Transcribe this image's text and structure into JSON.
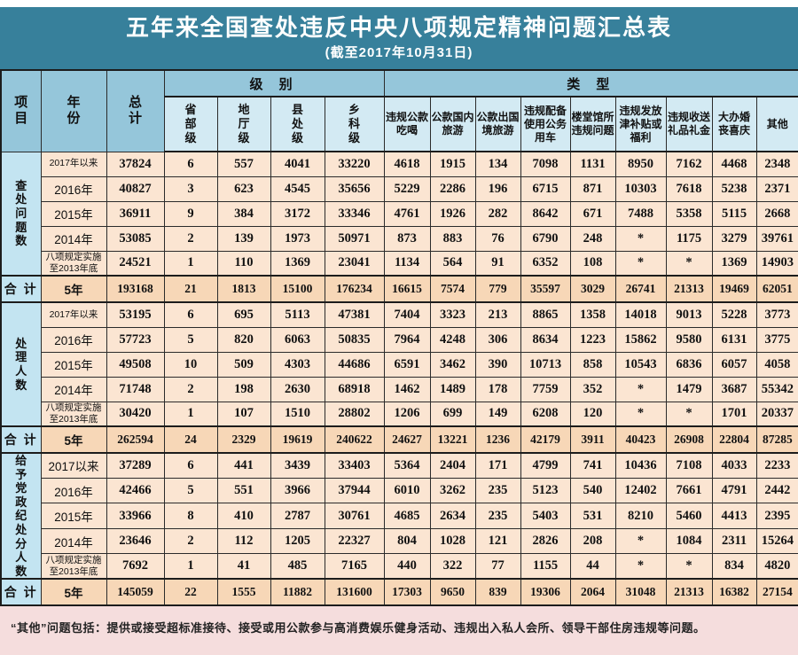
{
  "colors": {
    "title_bg": "#37809B",
    "header_bg": "#95C6DA",
    "subheader_bg": "#D3EAF3",
    "section_label_bg": "#C3E4F1",
    "row_bg": "#FBE5D2",
    "summary_row_bg": "#F7D7B7",
    "footnote_bg": "#F5DDDD"
  },
  "chart_data": {
    "type": "table",
    "title": "五年来全国查处违反中央八项规定精神问题汇总表",
    "subtitle": "(截至2017年10月31日)",
    "columns": {
      "item": "项目",
      "year": "年份",
      "total": "总计",
      "level_group": "级 别",
      "type_group": "类 型",
      "level_cols": [
        "省部级",
        "地厅级",
        "县处级",
        "乡科级"
      ],
      "type_cols": [
        "违规公款吃喝",
        "公款国内旅游",
        "公款出国境旅游",
        "违规配备使用公务用车",
        "楼堂馆所违规问题",
        "违规发放津补贴或福利",
        "违规收送礼品礼金",
        "大办婚丧喜庆",
        "其他"
      ]
    },
    "sections": [
      {
        "label": "查处问题数",
        "rows": [
          {
            "year": "2017年以来",
            "total": "37824",
            "values": [
              "6",
              "557",
              "4041",
              "33220",
              "4618",
              "1915",
              "134",
              "7098",
              "1131",
              "8950",
              "7162",
              "4468",
              "2348"
            ]
          },
          {
            "year": "2016年",
            "total": "40827",
            "values": [
              "3",
              "623",
              "4545",
              "35656",
              "5229",
              "2286",
              "196",
              "6715",
              "871",
              "10303",
              "7618",
              "5238",
              "2371"
            ]
          },
          {
            "year": "2015年",
            "total": "36911",
            "values": [
              "9",
              "384",
              "3172",
              "33346",
              "4761",
              "1926",
              "282",
              "8642",
              "671",
              "7488",
              "5358",
              "5115",
              "2668"
            ]
          },
          {
            "year": "2014年",
            "total": "53085",
            "values": [
              "2",
              "139",
              "1973",
              "50971",
              "873",
              "883",
              "76",
              "6790",
              "248",
              "*",
              "1175",
              "3279",
              "39761"
            ]
          },
          {
            "year": "八项规定实施至2013年底",
            "total": "24521",
            "values": [
              "1",
              "110",
              "1369",
              "23041",
              "1134",
              "564",
              "91",
              "6352",
              "108",
              "*",
              "*",
              "1369",
              "14903"
            ]
          }
        ],
        "summary": {
          "label": "合 计",
          "year": "5年",
          "total": "193168",
          "values": [
            "21",
            "1813",
            "15100",
            "176234",
            "16615",
            "7574",
            "779",
            "35597",
            "3029",
            "26741",
            "21313",
            "19469",
            "62051"
          ]
        }
      },
      {
        "label": "处理人数",
        "rows": [
          {
            "year": "2017年以来",
            "total": "53195",
            "values": [
              "6",
              "695",
              "5113",
              "47381",
              "7404",
              "3323",
              "213",
              "8865",
              "1358",
              "14018",
              "9013",
              "5228",
              "3773"
            ]
          },
          {
            "year": "2016年",
            "total": "57723",
            "values": [
              "5",
              "820",
              "6063",
              "50835",
              "7964",
              "4248",
              "306",
              "8634",
              "1223",
              "15862",
              "9580",
              "6131",
              "3775"
            ]
          },
          {
            "year": "2015年",
            "total": "49508",
            "values": [
              "10",
              "509",
              "4303",
              "44686",
              "6591",
              "3462",
              "390",
              "10713",
              "858",
              "10543",
              "6836",
              "6057",
              "4058"
            ]
          },
          {
            "year": "2014年",
            "total": "71748",
            "values": [
              "2",
              "198",
              "2630",
              "68918",
              "1462",
              "1489",
              "178",
              "7759",
              "352",
              "*",
              "1479",
              "3687",
              "55342"
            ]
          },
          {
            "year": "八项规定实施至2013年底",
            "total": "30420",
            "values": [
              "1",
              "107",
              "1510",
              "28802",
              "1206",
              "699",
              "149",
              "6208",
              "120",
              "*",
              "*",
              "1701",
              "20337"
            ]
          }
        ],
        "summary": {
          "label": "合 计",
          "year": "5年",
          "total": "262594",
          "values": [
            "24",
            "2329",
            "19619",
            "240622",
            "24627",
            "13221",
            "1236",
            "42179",
            "3911",
            "40423",
            "26908",
            "22804",
            "87285"
          ]
        }
      },
      {
        "label": "给予党政纪处分人数",
        "rows": [
          {
            "year": "2017以来",
            "total": "37289",
            "values": [
              "6",
              "441",
              "3439",
              "33403",
              "5364",
              "2404",
              "171",
              "4799",
              "741",
              "10436",
              "7108",
              "4033",
              "2233"
            ]
          },
          {
            "year": "2016年",
            "total": "42466",
            "values": [
              "5",
              "551",
              "3966",
              "37944",
              "6010",
              "3262",
              "235",
              "5123",
              "540",
              "12402",
              "7661",
              "4791",
              "2442"
            ]
          },
          {
            "year": "2015年",
            "total": "33966",
            "values": [
              "8",
              "410",
              "2787",
              "30761",
              "4685",
              "2634",
              "235",
              "5403",
              "531",
              "8210",
              "5460",
              "4413",
              "2395"
            ]
          },
          {
            "year": "2014年",
            "total": "23646",
            "values": [
              "2",
              "112",
              "1205",
              "22327",
              "804",
              "1028",
              "121",
              "2826",
              "208",
              "*",
              "1084",
              "2311",
              "15264"
            ]
          },
          {
            "year": "八项规定实施至2013年底",
            "total": "7692",
            "values": [
              "1",
              "41",
              "485",
              "7165",
              "440",
              "322",
              "77",
              "1155",
              "44",
              "*",
              "*",
              "834",
              "4820"
            ]
          }
        ],
        "summary": {
          "label": "合 计",
          "year": "5年",
          "total": "145059",
          "values": [
            "22",
            "1555",
            "11882",
            "131600",
            "17303",
            "9650",
            "839",
            "19306",
            "2064",
            "31048",
            "21313",
            "16382",
            "27154"
          ]
        }
      }
    ],
    "footnote": "“其他”问题包括：提供或接受超标准接待、接受或用公款参与高消费娱乐健身活动、违规出入私人会所、领导干部住房违规等问题。"
  }
}
